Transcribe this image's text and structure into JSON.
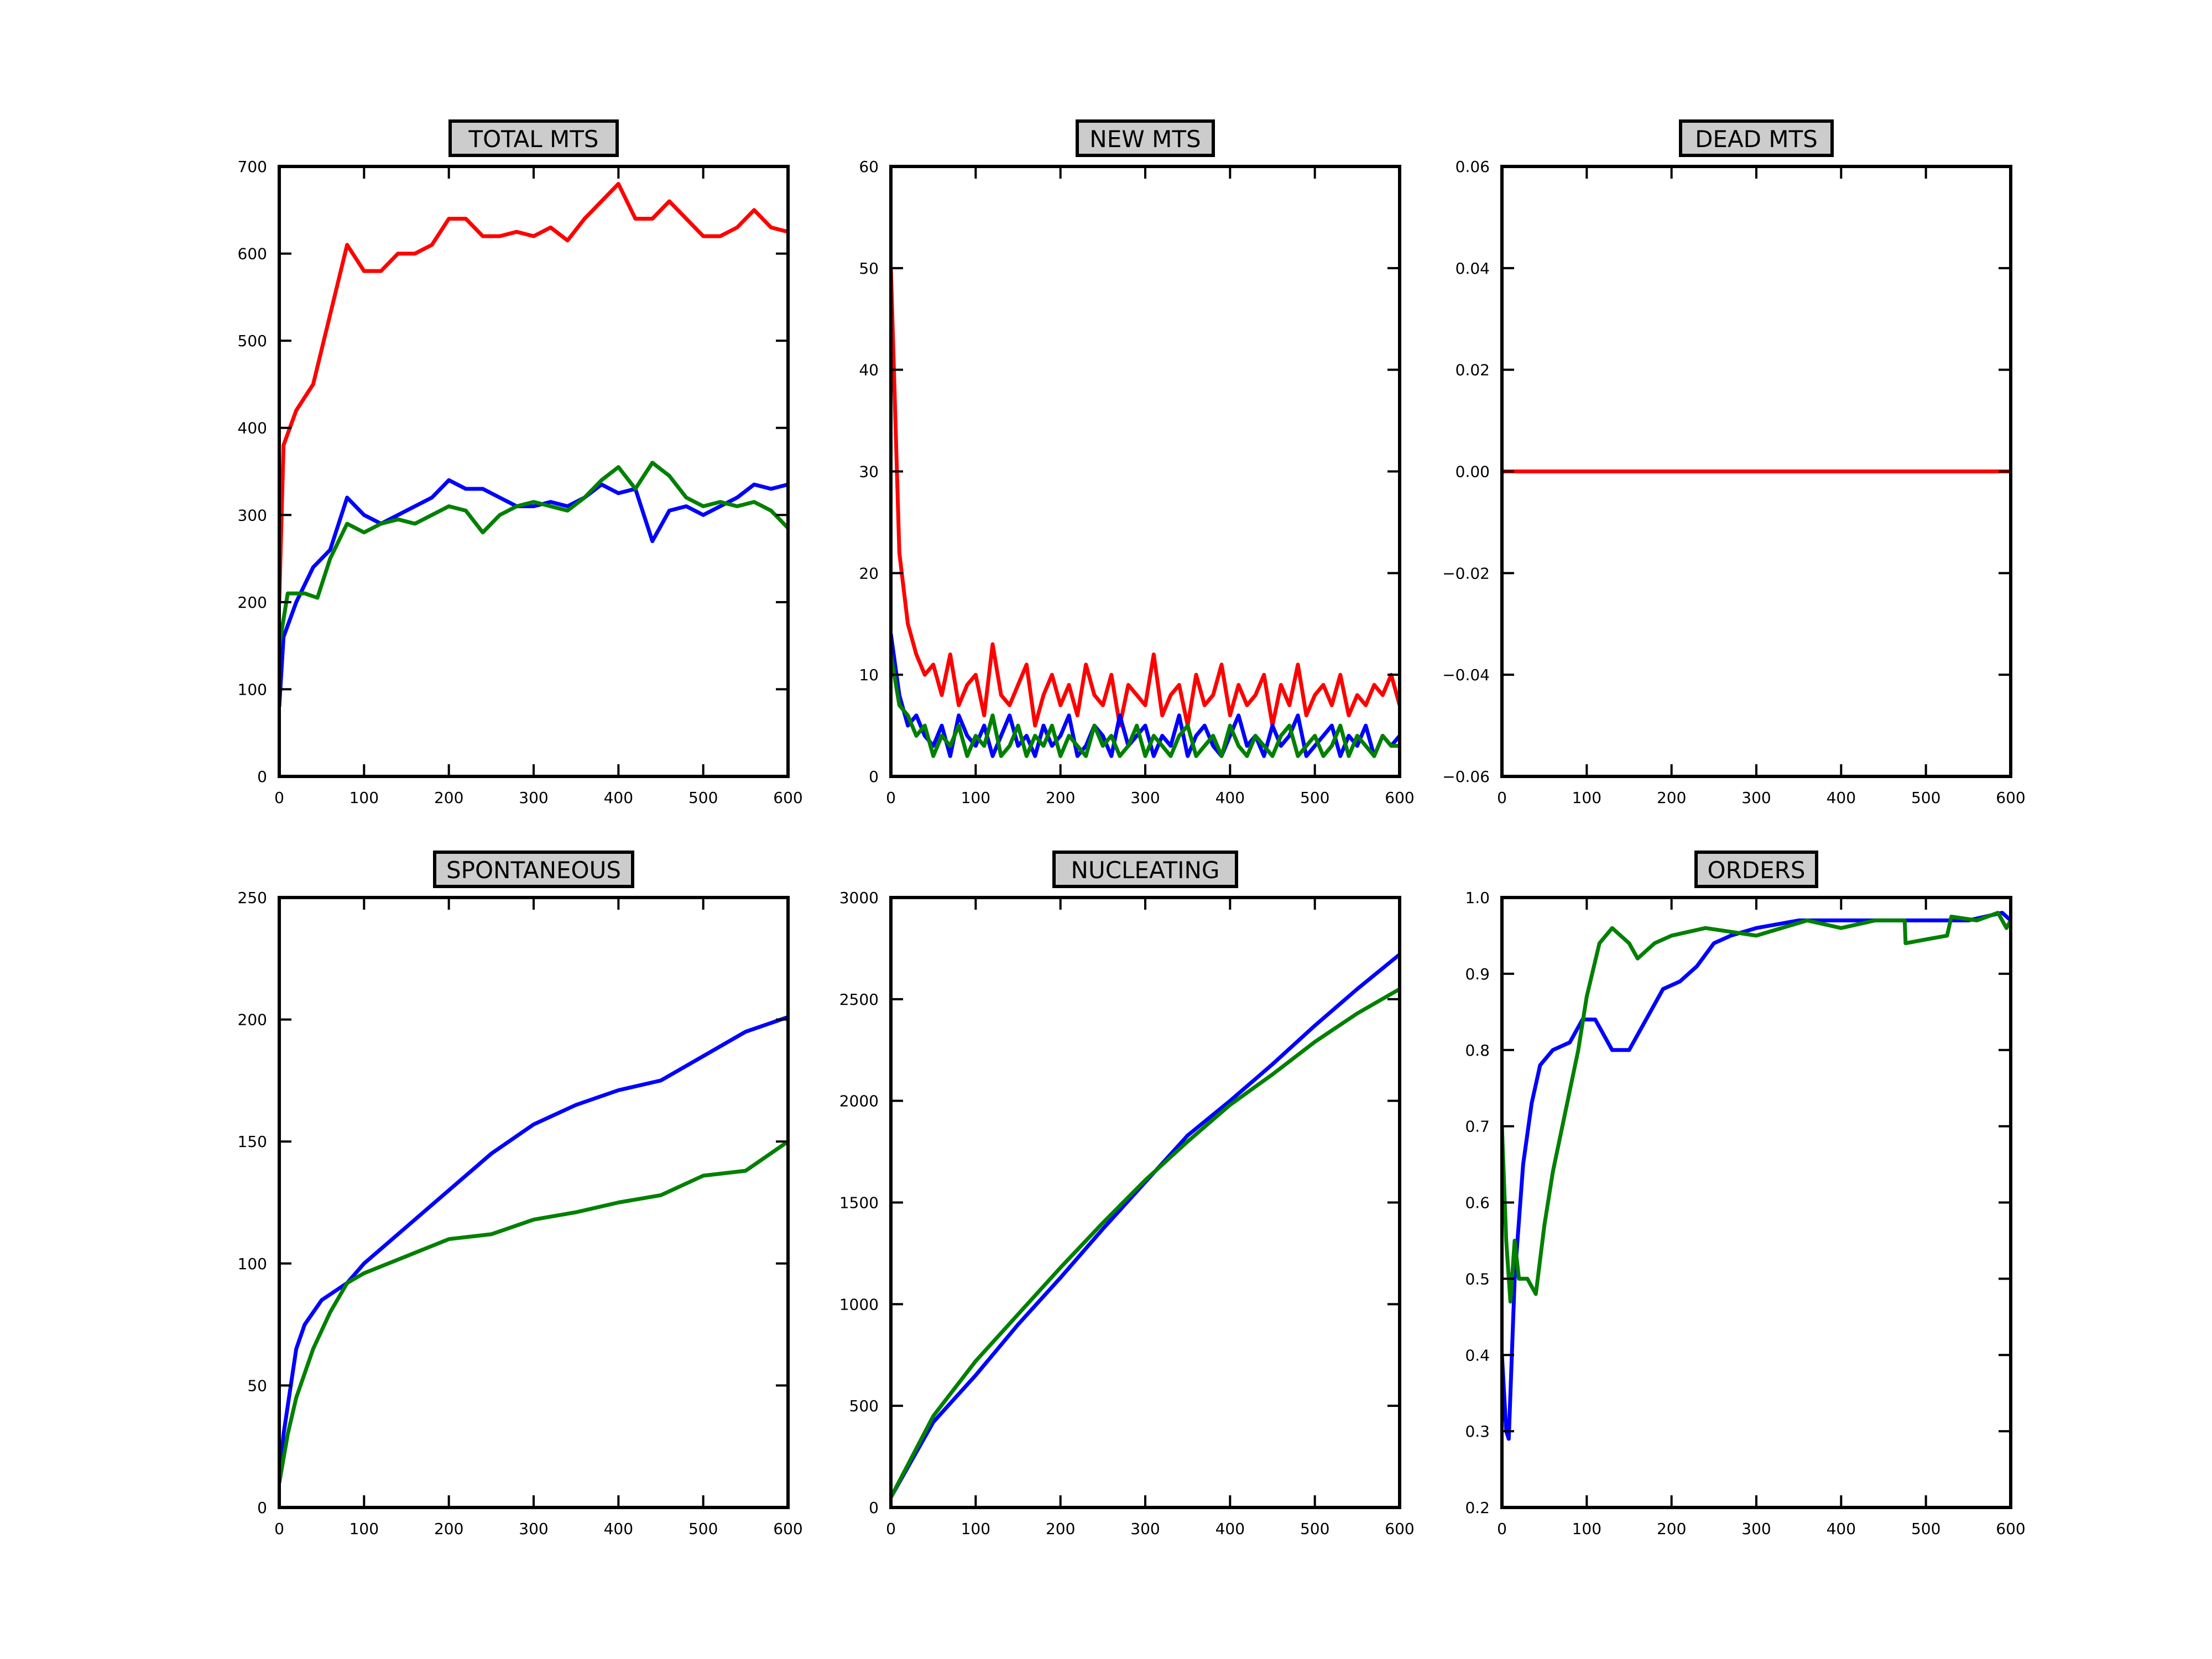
{
  "colors": {
    "red": "#ff0000",
    "blue": "#0000ff",
    "green": "#008000",
    "title_bg": "#cccccc"
  },
  "chart_data": [
    {
      "type": "line",
      "title": "TOTAL MTS",
      "xlim": [
        0,
        600
      ],
      "ylim": [
        0,
        700
      ],
      "xticks": [
        "0",
        "100",
        "200",
        "300",
        "400",
        "500",
        "600"
      ],
      "yticks": [
        "0",
        "100",
        "200",
        "300",
        "400",
        "500",
        "600",
        "700"
      ],
      "grid": false,
      "series": [
        {
          "color": "red",
          "x": [
            0,
            5,
            20,
            40,
            60,
            80,
            100,
            120,
            140,
            160,
            180,
            200,
            220,
            240,
            260,
            280,
            300,
            320,
            340,
            360,
            380,
            400,
            420,
            440,
            460,
            480,
            500,
            520,
            540,
            560,
            580,
            600
          ],
          "y": [
            200,
            380,
            420,
            450,
            530,
            610,
            580,
            580,
            600,
            600,
            610,
            640,
            640,
            620,
            620,
            625,
            620,
            630,
            615,
            640,
            660,
            680,
            640,
            640,
            660,
            640,
            620,
            620,
            630,
            650,
            630,
            625
          ]
        },
        {
          "color": "blue",
          "x": [
            0,
            5,
            20,
            40,
            60,
            80,
            100,
            120,
            140,
            160,
            180,
            200,
            220,
            240,
            260,
            280,
            300,
            320,
            340,
            360,
            380,
            400,
            420,
            440,
            460,
            480,
            500,
            520,
            540,
            560,
            580,
            600
          ],
          "y": [
            80,
            160,
            200,
            240,
            260,
            320,
            300,
            290,
            300,
            310,
            320,
            340,
            330,
            330,
            320,
            310,
            310,
            315,
            310,
            320,
            335,
            325,
            330,
            270,
            305,
            310,
            300,
            310,
            320,
            335,
            330,
            335
          ]
        },
        {
          "color": "green",
          "x": [
            0,
            10,
            30,
            45,
            60,
            80,
            100,
            120,
            140,
            160,
            180,
            200,
            220,
            240,
            260,
            280,
            300,
            320,
            340,
            360,
            380,
            400,
            420,
            440,
            460,
            480,
            500,
            520,
            540,
            560,
            580,
            600
          ],
          "y": [
            150,
            210,
            210,
            205,
            250,
            290,
            280,
            290,
            295,
            290,
            300,
            310,
            305,
            280,
            300,
            310,
            315,
            310,
            305,
            320,
            340,
            355,
            330,
            360,
            345,
            320,
            310,
            315,
            310,
            315,
            305,
            285
          ]
        }
      ]
    },
    {
      "type": "line",
      "title": "NEW MTS",
      "xlim": [
        0,
        600
      ],
      "ylim": [
        0,
        60
      ],
      "xticks": [
        "0",
        "100",
        "200",
        "300",
        "400",
        "500",
        "600"
      ],
      "yticks": [
        "0",
        "10",
        "20",
        "30",
        "40",
        "50",
        "60"
      ],
      "grid": false,
      "x_step": 10,
      "series": [
        {
          "color": "red",
          "y": [
            50,
            22,
            15,
            12,
            10,
            11,
            8,
            12,
            7,
            9,
            10,
            6,
            13,
            8,
            7,
            9,
            11,
            5,
            8,
            10,
            7,
            9,
            6,
            11,
            8,
            7,
            10,
            5,
            9,
            8,
            7,
            12,
            6,
            8,
            9,
            5,
            10,
            7,
            8,
            11,
            6,
            9,
            7,
            8,
            10,
            5,
            9,
            7,
            11,
            6,
            8,
            9,
            7,
            10,
            6,
            8,
            7,
            9,
            8,
            10,
            7
          ]
        },
        {
          "color": "blue",
          "y": [
            14,
            8,
            5,
            6,
            4,
            3,
            5,
            2,
            6,
            4,
            3,
            5,
            2,
            4,
            6,
            3,
            4,
            2,
            5,
            3,
            4,
            6,
            2,
            3,
            5,
            4,
            2,
            6,
            3,
            4,
            5,
            2,
            4,
            3,
            6,
            2,
            4,
            5,
            3,
            2,
            4,
            6,
            3,
            4,
            2,
            5,
            3,
            4,
            6,
            2,
            3,
            4,
            5,
            2,
            4,
            3,
            5,
            2,
            4,
            3,
            4
          ]
        },
        {
          "color": "green",
          "y": [
            12,
            7,
            6,
            4,
            5,
            2,
            4,
            3,
            5,
            2,
            4,
            3,
            6,
            2,
            3,
            5,
            2,
            4,
            3,
            5,
            2,
            4,
            3,
            2,
            5,
            3,
            4,
            2,
            3,
            5,
            2,
            4,
            3,
            2,
            4,
            5,
            2,
            3,
            4,
            2,
            5,
            3,
            2,
            4,
            3,
            2,
            4,
            5,
            2,
            3,
            4,
            2,
            3,
            5,
            2,
            4,
            3,
            2,
            4,
            3,
            3
          ]
        }
      ]
    },
    {
      "type": "line",
      "title": "DEAD MTS",
      "xlim": [
        0,
        600
      ],
      "ylim": [
        -0.06,
        0.06
      ],
      "xticks": [
        "0",
        "100",
        "200",
        "300",
        "400",
        "500",
        "600"
      ],
      "yticks": [
        "−0.06",
        "−0.04",
        "−0.02",
        "0.00",
        "0.02",
        "0.04",
        "0.06"
      ],
      "grid": false,
      "series": [
        {
          "color": "red",
          "x": [
            0,
            600
          ],
          "y": [
            0,
            0
          ]
        }
      ]
    },
    {
      "type": "line",
      "title": "SPONTANEOUS",
      "xlim": [
        0,
        600
      ],
      "ylim": [
        0,
        250
      ],
      "xticks": [
        "0",
        "100",
        "200",
        "300",
        "400",
        "500",
        "600"
      ],
      "yticks": [
        "0",
        "50",
        "100",
        "150",
        "200",
        "250"
      ],
      "grid": false,
      "series": [
        {
          "color": "blue",
          "x": [
            0,
            5,
            20,
            30,
            50,
            80,
            100,
            150,
            200,
            250,
            300,
            350,
            400,
            450,
            500,
            550,
            600
          ],
          "y": [
            10,
            30,
            65,
            75,
            85,
            92,
            100,
            115,
            130,
            145,
            157,
            165,
            171,
            175,
            185,
            195,
            201
          ]
        },
        {
          "color": "green",
          "x": [
            0,
            10,
            20,
            40,
            60,
            80,
            100,
            150,
            200,
            250,
            300,
            350,
            400,
            450,
            500,
            550,
            600
          ],
          "y": [
            10,
            30,
            45,
            65,
            80,
            92,
            96,
            103,
            110,
            112,
            118,
            121,
            125,
            128,
            136,
            138,
            150
          ]
        }
      ]
    },
    {
      "type": "line",
      "title": "NUCLEATING",
      "xlim": [
        0,
        600
      ],
      "ylim": [
        0,
        3000
      ],
      "xticks": [
        "0",
        "100",
        "200",
        "300",
        "400",
        "500",
        "600"
      ],
      "yticks": [
        "0",
        "500",
        "1000",
        "1500",
        "2000",
        "2500",
        "3000"
      ],
      "grid": false,
      "series": [
        {
          "color": "blue",
          "x": [
            0,
            50,
            100,
            150,
            200,
            250,
            300,
            350,
            400,
            450,
            500,
            550,
            600
          ],
          "y": [
            50,
            420,
            650,
            900,
            1130,
            1370,
            1600,
            1830,
            2000,
            2180,
            2370,
            2550,
            2720
          ]
        },
        {
          "color": "green",
          "x": [
            0,
            50,
            100,
            150,
            200,
            250,
            300,
            350,
            400,
            450,
            500,
            550,
            600
          ],
          "y": [
            50,
            450,
            720,
            950,
            1180,
            1400,
            1610,
            1800,
            1980,
            2130,
            2290,
            2430,
            2550
          ]
        }
      ]
    },
    {
      "type": "line",
      "title": "ORDERS",
      "xlim": [
        0,
        600
      ],
      "ylim": [
        0.2,
        1.0
      ],
      "xticks": [
        "0",
        "100",
        "200",
        "300",
        "400",
        "500",
        "600"
      ],
      "yticks": [
        "0.2",
        "0.3",
        "0.4",
        "0.5",
        "0.6",
        "0.7",
        "0.8",
        "0.9",
        "1.0"
      ],
      "grid": false,
      "series": [
        {
          "color": "blue",
          "x": [
            0,
            5,
            8,
            15,
            25,
            35,
            45,
            60,
            80,
            95,
            110,
            130,
            150,
            170,
            190,
            210,
            230,
            250,
            270,
            300,
            350,
            400,
            450,
            500,
            550,
            590,
            600
          ],
          "y": [
            0.4,
            0.3,
            0.29,
            0.5,
            0.65,
            0.73,
            0.78,
            0.8,
            0.81,
            0.84,
            0.84,
            0.8,
            0.8,
            0.84,
            0.88,
            0.89,
            0.91,
            0.94,
            0.95,
            0.96,
            0.97,
            0.97,
            0.97,
            0.97,
            0.97,
            0.98,
            0.97
          ]
        },
        {
          "color": "green",
          "x": [
            0,
            5,
            10,
            15,
            20,
            30,
            40,
            50,
            60,
            75,
            90,
            100,
            115,
            130,
            150,
            160,
            180,
            200,
            240,
            300,
            360,
            400,
            440,
            475,
            476,
            500,
            525,
            530,
            560,
            585,
            595,
            600
          ],
          "y": [
            0.7,
            0.55,
            0.47,
            0.55,
            0.5,
            0.5,
            0.48,
            0.57,
            0.64,
            0.72,
            0.8,
            0.87,
            0.94,
            0.96,
            0.94,
            0.92,
            0.94,
            0.95,
            0.96,
            0.95,
            0.97,
            0.96,
            0.97,
            0.97,
            0.94,
            0.945,
            0.95,
            0.975,
            0.97,
            0.98,
            0.96,
            0.97
          ]
        }
      ]
    }
  ]
}
